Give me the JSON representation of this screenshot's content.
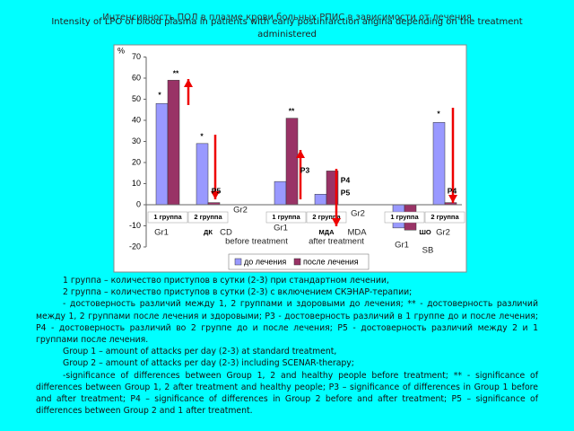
{
  "title_ru": "Интенсивность ПОЛ в плазме крови больных РПИС в зависимости от лечения",
  "title_en": "Intensity of LPO of blood plasma in patients with early postinfarction angina depending on the treatment administered",
  "chart_data": {
    "type": "bar",
    "y_unit": "%",
    "categories": [
      "1 группа",
      "2 группа",
      "1 группа",
      "2 группа",
      "1 группа",
      "2 группа"
    ],
    "groups": [
      "ДК",
      "МДА",
      "ШО"
    ],
    "series": [
      {
        "name": "до лечения",
        "color": "#9999ff",
        "values": [
          48,
          29,
          11,
          5,
          -11,
          39
        ]
      },
      {
        "name": "после лечения",
        "color": "#993366",
        "values": [
          59,
          1,
          41,
          16,
          -12,
          1
        ]
      }
    ],
    "ylim": [
      -20,
      70
    ],
    "yticks": [
      -20,
      -10,
      0,
      10,
      20,
      30,
      40,
      50,
      60,
      70
    ],
    "grid": false,
    "annotations": [
      "*",
      "**",
      "*",
      "P5",
      "**",
      "P3",
      "P4",
      "P5",
      "*",
      "P4"
    ],
    "overlay_labels": [
      "Gr2",
      "Gr1",
      "CD",
      "before treatment",
      "Gr1",
      "Gr2",
      "MDA",
      "after treatment",
      "Gr1",
      "SB",
      "Gr2"
    ]
  },
  "notes": [
    "1 группа  – количество приступов в сутки  (2-3) при стандартном лечении,",
    "2 группа  – количество приступов в сутки  (2-3) с включением СКЭНАР-терапии;",
    "- достоверность различий между 1, 2 группами и здоровыми до лечения; ** - достоверность различий между 1, 2 группами после лечения и здоровыми; Р3 - достоверность различий в 1 группе до и после лечения; Р4 - достоверность различий во 2 группе до и после лечения;  Р5 - достоверность различий между 2 и 1 группами после лечения.",
    "Group 1 – amount of attacks per day (2-3) at standard treatment,",
    "Group 2 – amount of attacks per day (2-3) including SCENAR-therapy;",
    "-significance of differences between Group 1, 2 and healthy people before treatment; ** - significance of differences between Group 1, 2 after treatment and healthy people; P3 – significance of differences in Group 1 before and after treatment; P4 – significance of differences in Group 2 before and after treatment; P5 – significance of differences between Group 2 and 1 after treatment."
  ]
}
